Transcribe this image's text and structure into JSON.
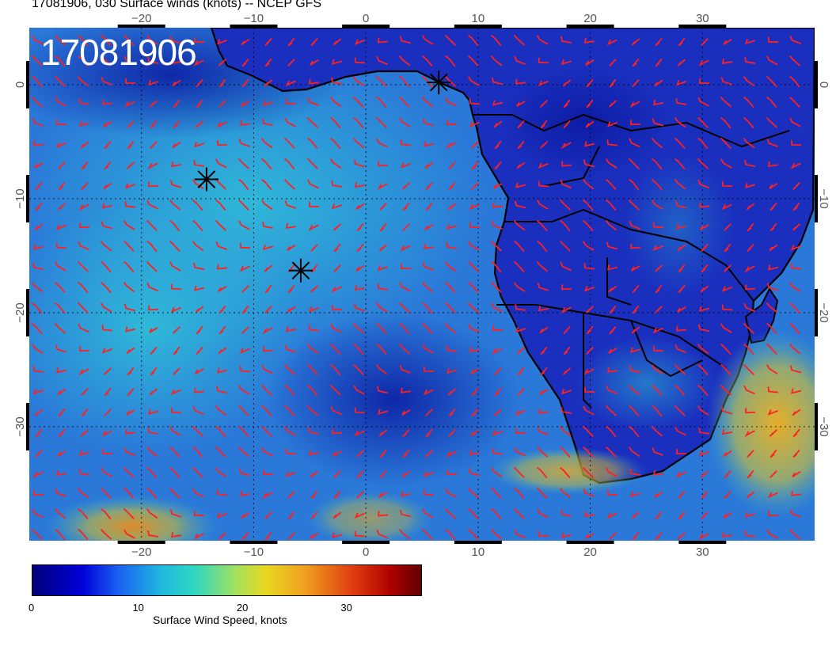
{
  "header": {
    "title": "17081906, 030 Surface winds (knots) -- NCEP GFS"
  },
  "map": {
    "stamp": "17081906",
    "lon_range": [
      -30,
      40
    ],
    "lat_range": [
      -40,
      5
    ],
    "lon_ticks": [
      "−20",
      "−10",
      "0",
      "10",
      "20",
      "30"
    ],
    "lat_ticks": [
      "0",
      "−10",
      "−20",
      "−30"
    ],
    "barb_color": "#ff2020",
    "storm_markers": [
      {
        "lon": 6.5,
        "lat": 0.2
      },
      {
        "lon": -14.2,
        "lat": -8.3
      },
      {
        "lon": -5.8,
        "lat": -16.3
      }
    ],
    "colors": {
      "calm": "#1030c8",
      "moderate": "#20b8d8",
      "strong": "#f0c020",
      "land_outline": "#000000"
    }
  },
  "colorbar": {
    "label": "Surface Wind Speed, knots",
    "ticks": [
      "0",
      "10",
      "20",
      "30"
    ],
    "tick_values": [
      0,
      10,
      20,
      30
    ],
    "max_value": 37.5
  }
}
